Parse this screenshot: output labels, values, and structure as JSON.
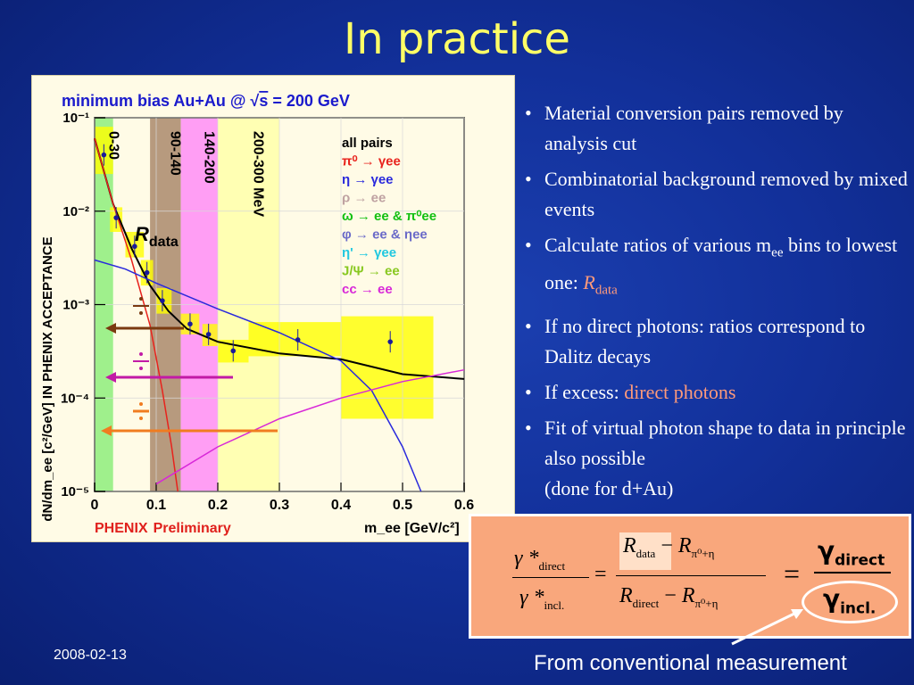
{
  "slide": {
    "title": "In practice",
    "date": "2008-02-13",
    "footer_note": "From conventional measurement"
  },
  "plot": {
    "title": "minimum bias Au+Au @ √s = 200 GeV",
    "title_prefix": "minimum bias Au+Au @ ",
    "title_root": "√",
    "title_s": "s",
    "title_suffix": " = 200 GeV",
    "ylabel": "dN/dm_ee [c²/GeV] IN PHENIX ACCEPTANCE",
    "xlabel": "m_ee [GeV/c²]",
    "credit_a": "PHENIX",
    "credit_b": "Preliminary",
    "rdata_label": "R",
    "rdata_sub": "data",
    "bands": [
      {
        "label": "0-30",
        "color": "#9ff08c"
      },
      {
        "label": "90-140",
        "color": "#b79a7e"
      },
      {
        "label": "140-200",
        "color": "#ff9ef4"
      },
      {
        "label": "200-300 MeV",
        "color": "#ffffb3"
      }
    ],
    "legend": [
      {
        "text": "all pairs",
        "color": "#000000"
      },
      {
        "text": "π⁰ → γee",
        "color": "#e8221c"
      },
      {
        "text": "η → γee",
        "color": "#2a2adc"
      },
      {
        "text": "ρ → ee",
        "color": "#bfa2a2"
      },
      {
        "text": "ω → ee & π⁰ee",
        "color": "#12c012"
      },
      {
        "text": "φ → ee & ηee",
        "color": "#6a6ac8"
      },
      {
        "text": "η' → γee",
        "color": "#22c8e0"
      },
      {
        "text": "J/Ψ → ee",
        "color": "#88c820"
      },
      {
        "text": "cc → ee",
        "color": "#d828d8"
      }
    ]
  },
  "chart_data": {
    "type": "scatter",
    "title": "minimum bias Au+Au @ √s = 200 GeV",
    "xlabel": "m_ee [GeV/c²]",
    "ylabel": "dN/dm_ee [c²/GeV] IN PHENIX ACCEPTANCE",
    "xlim": [
      0,
      0.6
    ],
    "ylim": [
      1e-05,
      0.1
    ],
    "yscale": "log",
    "x_ticks": [
      "0",
      "0.1",
      "0.2",
      "0.3",
      "0.4",
      "0.5",
      "0.6"
    ],
    "y_ticks": [
      "10⁻⁵",
      "10⁻⁴",
      "10⁻³",
      "10⁻²",
      "10⁻¹"
    ],
    "data_points": {
      "x": [
        0.015,
        0.035,
        0.065,
        0.085,
        0.11,
        0.155,
        0.185,
        0.225,
        0.33,
        0.48
      ],
      "y": [
        0.04,
        0.0085,
        0.0042,
        0.0022,
        0.0011,
        0.00062,
        0.00048,
        0.00032,
        0.00042,
        0.0004
      ]
    },
    "series": [
      {
        "name": "all pairs",
        "x": [
          0.0,
          0.03,
          0.06,
          0.09,
          0.12,
          0.15,
          0.2,
          0.3,
          0.4,
          0.5,
          0.6
        ],
        "y": [
          0.06,
          0.012,
          0.004,
          0.0016,
          0.00085,
          0.00055,
          0.0004,
          0.0003,
          0.00026,
          0.00018,
          0.00016
        ]
      },
      {
        "name": "π⁰ → γee",
        "x": [
          0.0,
          0.03,
          0.06,
          0.09,
          0.11,
          0.125,
          0.135
        ],
        "y": [
          0.06,
          0.012,
          0.003,
          0.0006,
          0.00012,
          3e-05,
          1e-05
        ]
      },
      {
        "name": "η → γee",
        "x": [
          0.0,
          0.05,
          0.1,
          0.2,
          0.3,
          0.4,
          0.45,
          0.5,
          0.53
        ],
        "y": [
          0.003,
          0.0024,
          0.0017,
          0.0009,
          0.0005,
          0.00025,
          0.00012,
          3e-05,
          1e-05
        ]
      },
      {
        "name": "cc → ee",
        "x": [
          0.1,
          0.2,
          0.3,
          0.4,
          0.5,
          0.6
        ],
        "y": [
          1.2e-05,
          3e-05,
          6e-05,
          0.0001,
          0.00015,
          0.0002
        ]
      }
    ]
  },
  "bullets": [
    {
      "parts": [
        {
          "t": "Material conversion pairs removed by analysis cut",
          "c": ""
        }
      ]
    },
    {
      "parts": [
        {
          "t": "Combinatorial background removed by mixed events",
          "c": ""
        }
      ]
    },
    {
      "parts": [
        {
          "t": "Calculate ratios of various m",
          "c": ""
        },
        {
          "t": "ee",
          "c": "sub"
        },
        {
          "t": " bins to lowest one:  ",
          "c": ""
        },
        {
          "t": "R",
          "c": "accent-i"
        },
        {
          "t": "data",
          "c": "accent-sub"
        }
      ]
    },
    {
      "parts": [
        {
          "t": "If no direct photons: ratios correspond to Dalitz decays",
          "c": ""
        }
      ]
    },
    {
      "parts": [
        {
          "t": "If excess:  ",
          "c": ""
        },
        {
          "t": "direct photons",
          "c": "accent"
        }
      ]
    },
    {
      "parts": [
        {
          "t": "Fit of virtual photon shape to data in principle also possible",
          "c": ""
        },
        {
          "t": "(done for d+Au)",
          "c": "br"
        }
      ]
    }
  ],
  "formula": {
    "gamma_star": "γ *",
    "sub_direct": "direct",
    "sub_incl": "incl.",
    "equals": "=",
    "R": "R",
    "sub_data": "data",
    "minus": " − ",
    "sub_pi_eta": "π⁰+η",
    "sub_r_direct": "direct",
    "big_equals": "=",
    "gamma": "γ",
    "big_sub_direct": "direct",
    "big_sub_incl": "incl."
  }
}
